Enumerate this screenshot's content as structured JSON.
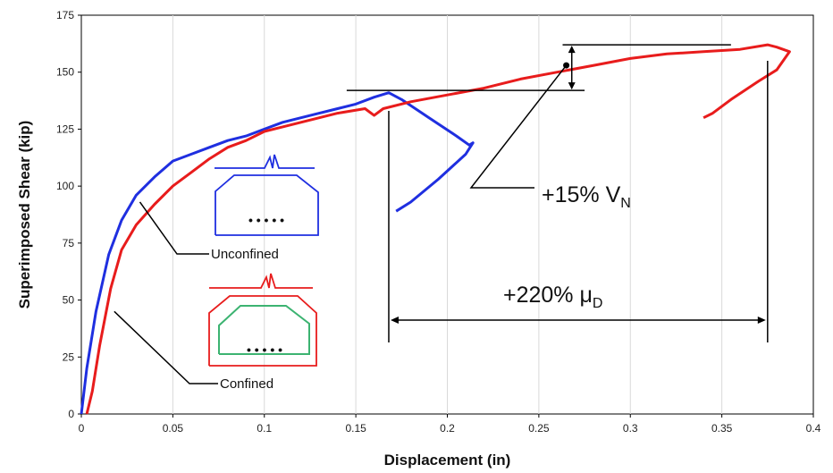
{
  "chart_data": {
    "type": "line",
    "title": "",
    "xlabel": "Displacement (in)",
    "ylabel": "Superimposed Shear (kip)",
    "xlim": [
      0,
      0.4
    ],
    "ylim": [
      0,
      175
    ],
    "x_ticks": [
      0,
      0.05,
      0.1,
      0.15,
      0.2,
      0.25,
      0.3,
      0.35,
      0.4
    ],
    "x_tick_labels": [
      "0",
      "0.05",
      "0.1",
      "0.15",
      "0.2",
      "0.25",
      "0.3",
      "0.35",
      "0.4"
    ],
    "y_ticks": [
      0,
      25,
      50,
      75,
      100,
      125,
      150,
      175
    ],
    "y_tick_labels": [
      "0",
      "25",
      "50",
      "75",
      "100",
      "125",
      "150",
      "175"
    ],
    "grid": "vertical",
    "series": [
      {
        "name": "Unconfined",
        "color": "#1f2fe0",
        "points": [
          [
            0,
            0
          ],
          [
            0.003,
            20
          ],
          [
            0.008,
            45
          ],
          [
            0.015,
            70
          ],
          [
            0.022,
            85
          ],
          [
            0.03,
            96
          ],
          [
            0.04,
            104
          ],
          [
            0.05,
            111
          ],
          [
            0.06,
            114
          ],
          [
            0.07,
            117
          ],
          [
            0.08,
            120
          ],
          [
            0.09,
            122
          ],
          [
            0.1,
            125
          ],
          [
            0.11,
            128
          ],
          [
            0.12,
            130
          ],
          [
            0.13,
            132
          ],
          [
            0.14,
            134
          ],
          [
            0.15,
            136
          ],
          [
            0.16,
            139
          ],
          [
            0.168,
            141
          ],
          [
            0.175,
            138
          ],
          [
            0.19,
            130
          ],
          [
            0.205,
            122
          ],
          [
            0.212,
            118
          ],
          [
            0.214,
            119
          ],
          [
            0.21,
            114
          ],
          [
            0.195,
            103
          ],
          [
            0.18,
            93
          ],
          [
            0.172,
            89
          ]
        ]
      },
      {
        "name": "Confined",
        "color": "#e81c1c",
        "points": [
          [
            0.003,
            0
          ],
          [
            0.006,
            10
          ],
          [
            0.01,
            30
          ],
          [
            0.016,
            55
          ],
          [
            0.022,
            72
          ],
          [
            0.03,
            83
          ],
          [
            0.04,
            92
          ],
          [
            0.05,
            100
          ],
          [
            0.06,
            106
          ],
          [
            0.07,
            112
          ],
          [
            0.08,
            117
          ],
          [
            0.09,
            120
          ],
          [
            0.1,
            124
          ],
          [
            0.11,
            126
          ],
          [
            0.12,
            128
          ],
          [
            0.14,
            132
          ],
          [
            0.155,
            134
          ],
          [
            0.16,
            131
          ],
          [
            0.165,
            134
          ],
          [
            0.18,
            137
          ],
          [
            0.2,
            140
          ],
          [
            0.22,
            143
          ],
          [
            0.24,
            147
          ],
          [
            0.26,
            150
          ],
          [
            0.28,
            153
          ],
          [
            0.3,
            156
          ],
          [
            0.32,
            158
          ],
          [
            0.34,
            159
          ],
          [
            0.36,
            160
          ],
          [
            0.375,
            162
          ],
          [
            0.38,
            161
          ],
          [
            0.387,
            159
          ],
          [
            0.38,
            151
          ],
          [
            0.37,
            146
          ],
          [
            0.355,
            138
          ],
          [
            0.345,
            132
          ],
          [
            0.34,
            130
          ]
        ]
      }
    ],
    "annotations": {
      "vn_text_main": "+15% V",
      "vn_text_sub": "N",
      "mu_text_main": "+220% μ",
      "mu_text_sub": "D",
      "unconfined_label": "Unconfined",
      "confined_label": "Confined",
      "vn_level_low": 142,
      "vn_level_high": 162,
      "vn_marker": [
        0.265,
        153
      ],
      "disp_start": 0.168,
      "disp_end": 0.375
    }
  }
}
